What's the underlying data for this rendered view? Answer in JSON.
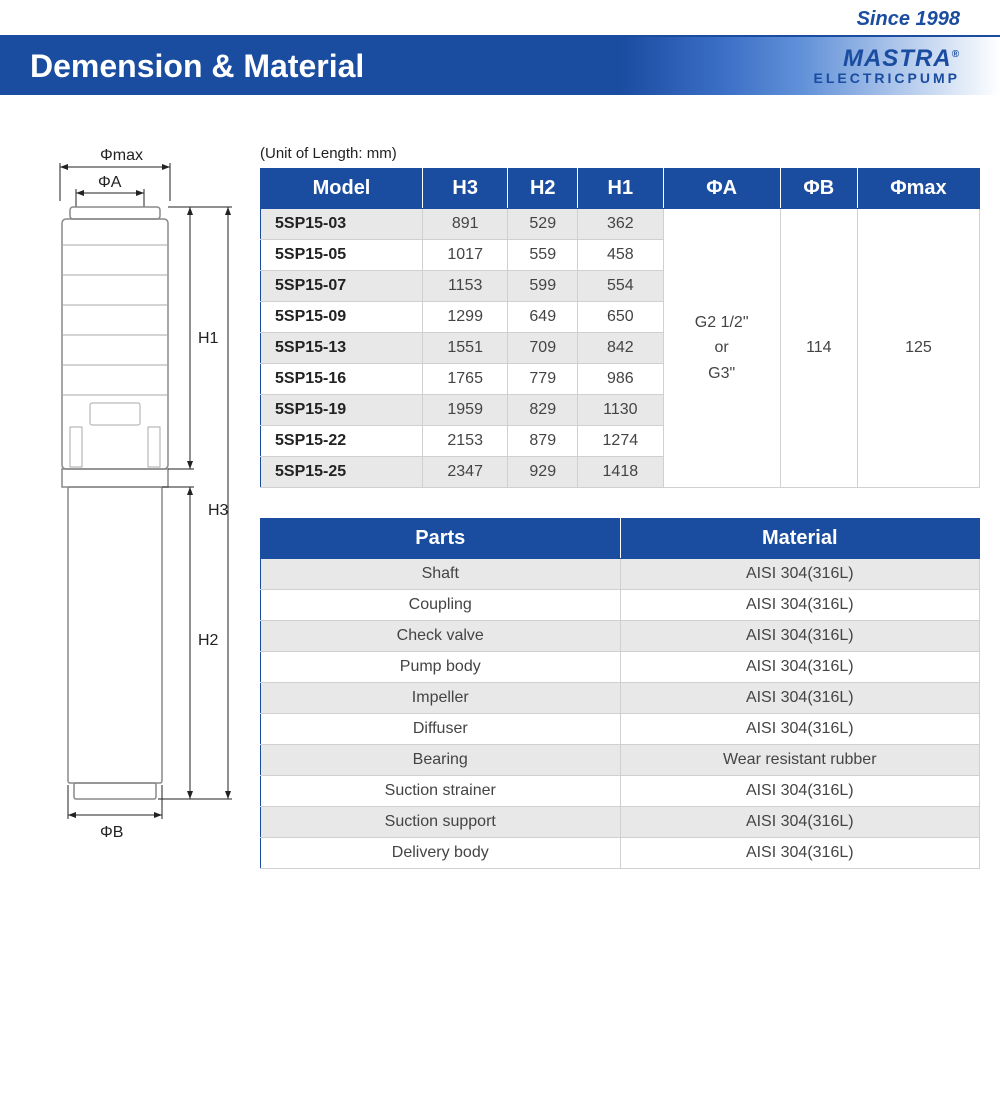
{
  "tagline": "Since 1998",
  "banner_title": "Demension & Material",
  "brand_top": "MASTRA",
  "brand_reg": "®",
  "brand_sub": "ELECTRICPUMP",
  "unit_note": "(Unit of Length: mm)",
  "dim_table": {
    "headers": [
      "Model",
      "H3",
      "H2",
      "H1",
      "ΦA",
      "ΦB",
      "Φmax"
    ],
    "rows": [
      {
        "model": "5SP15-03",
        "h3": "891",
        "h2": "529",
        "h1": "362"
      },
      {
        "model": "5SP15-05",
        "h3": "1017",
        "h2": "559",
        "h1": "458"
      },
      {
        "model": "5SP15-07",
        "h3": "1153",
        "h2": "599",
        "h1": "554"
      },
      {
        "model": "5SP15-09",
        "h3": "1299",
        "h2": "649",
        "h1": "650"
      },
      {
        "model": "5SP15-13",
        "h3": "1551",
        "h2": "709",
        "h1": "842"
      },
      {
        "model": "5SP15-16",
        "h3": "1765",
        "h2": "779",
        "h1": "986"
      },
      {
        "model": "5SP15-19",
        "h3": "1959",
        "h2": "829",
        "h1": "1130"
      },
      {
        "model": "5SP15-22",
        "h3": "2153",
        "h2": "879",
        "h1": "1274"
      },
      {
        "model": "5SP15-25",
        "h3": "2347",
        "h2": "929",
        "h1": "1418"
      }
    ],
    "phi_a": "G2 1/2\"\nor\nG3\"",
    "phi_b": "114",
    "phi_max": "125"
  },
  "mat_table": {
    "headers": [
      "Parts",
      "Material"
    ],
    "rows": [
      {
        "part": "Shaft",
        "mat": "AISI 304(316L)"
      },
      {
        "part": "Coupling",
        "mat": "AISI 304(316L)"
      },
      {
        "part": "Check valve",
        "mat": "AISI 304(316L)"
      },
      {
        "part": "Pump body",
        "mat": "AISI 304(316L)"
      },
      {
        "part": "Impeller",
        "mat": "AISI 304(316L)"
      },
      {
        "part": "Diffuser",
        "mat": "AISI 304(316L)"
      },
      {
        "part": "Bearing",
        "mat": "Wear resistant rubber"
      },
      {
        "part": "Suction strainer",
        "mat": "AISI 304(316L)"
      },
      {
        "part": "Suction support",
        "mat": "AISI 304(316L)"
      },
      {
        "part": "Delivery body",
        "mat": "AISI 304(316L)"
      }
    ]
  },
  "diagram_labels": {
    "phimax": "Φmax",
    "phia": "ΦA",
    "h1": "H1",
    "h2": "H2",
    "h3": "H3",
    "phib": "ΦB"
  }
}
